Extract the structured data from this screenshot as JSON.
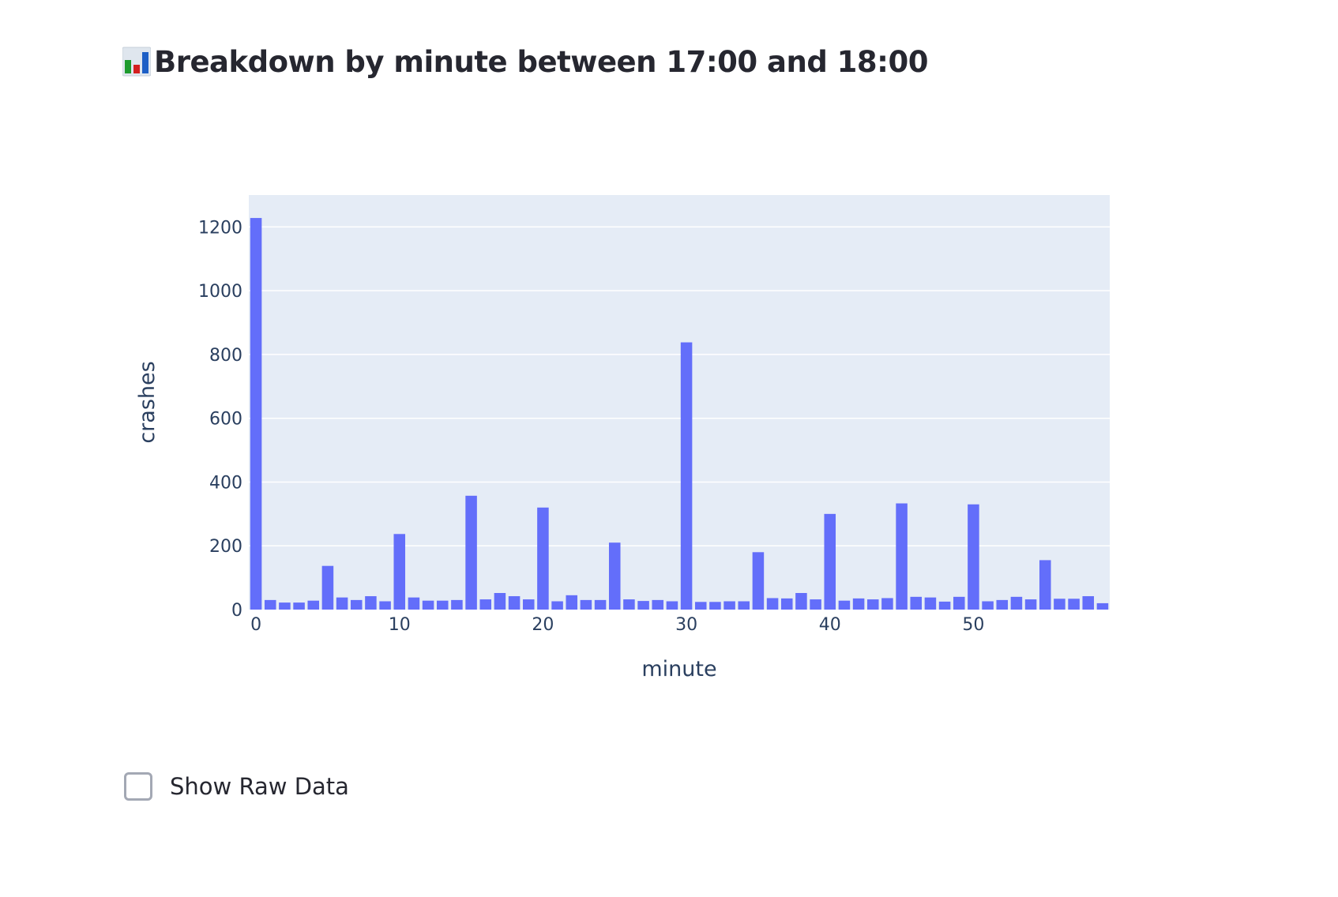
{
  "header": {
    "icon": "bar-chart-icon",
    "title": "Breakdown by minute between 17:00 and 18:00"
  },
  "chart_data": {
    "type": "bar",
    "xlabel": "minute",
    "ylabel": "crashes",
    "xlim": [
      -0.5,
      59.5
    ],
    "ylim": [
      0,
      1300
    ],
    "xticks": [
      0,
      10,
      20,
      30,
      40,
      50
    ],
    "yticks": [
      0,
      200,
      400,
      600,
      800,
      1000,
      1200
    ],
    "grid": true,
    "colors": {
      "bar": "#636efa",
      "plot_bg": "#e5ecf6",
      "grid": "#ffffff",
      "text": "#2a3f5f"
    },
    "x": [
      0,
      1,
      2,
      3,
      4,
      5,
      6,
      7,
      8,
      9,
      10,
      11,
      12,
      13,
      14,
      15,
      16,
      17,
      18,
      19,
      20,
      21,
      22,
      23,
      24,
      25,
      26,
      27,
      28,
      29,
      30,
      31,
      32,
      33,
      34,
      35,
      36,
      37,
      38,
      39,
      40,
      41,
      42,
      43,
      44,
      45,
      46,
      47,
      48,
      49,
      50,
      51,
      52,
      53,
      54,
      55,
      56,
      57,
      58,
      59
    ],
    "values": [
      1228,
      30,
      22,
      22,
      28,
      137,
      38,
      30,
      42,
      26,
      237,
      38,
      28,
      28,
      30,
      357,
      32,
      52,
      42,
      32,
      320,
      26,
      45,
      30,
      30,
      210,
      32,
      27,
      30,
      26,
      838,
      24,
      24,
      26,
      26,
      180,
      36,
      35,
      52,
      32,
      300,
      28,
      35,
      32,
      36,
      333,
      40,
      38,
      25,
      40,
      330,
      26,
      30,
      40,
      32,
      155,
      34,
      34,
      42,
      20
    ]
  },
  "controls": {
    "show_raw_label": "Show Raw Data",
    "show_raw_checked": false
  }
}
